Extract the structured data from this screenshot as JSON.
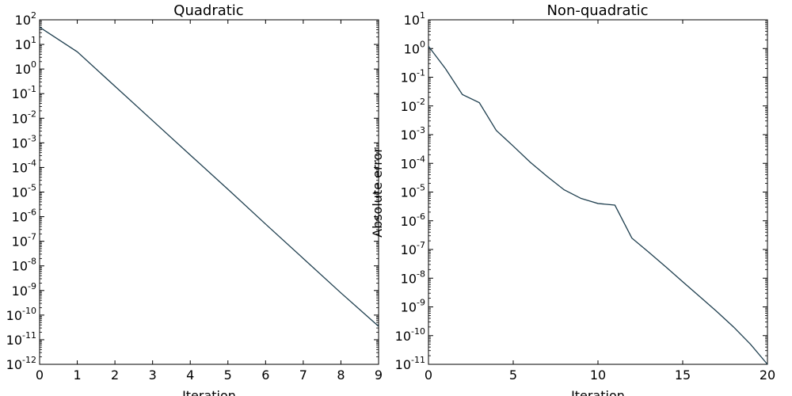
{
  "colors": {
    "series": "#1f3f4f",
    "axes": "#000000",
    "background": "#ffffff"
  },
  "chart_data": [
    {
      "type": "line",
      "title": "Quadratic",
      "xlabel": "Iteration",
      "ylabel": "",
      "yscale": "log",
      "grid": false,
      "xlim": [
        0,
        9
      ],
      "ylim": [
        1e-12,
        100
      ],
      "xticks": [
        0,
        1,
        2,
        3,
        4,
        5,
        6,
        7,
        8,
        9
      ],
      "yticks": [
        {
          "base": "10",
          "exp": "-12",
          "value": 1e-12
        },
        {
          "base": "10",
          "exp": "-11",
          "value": 1e-11
        },
        {
          "base": "10",
          "exp": "-10",
          "value": 1e-10
        },
        {
          "base": "10",
          "exp": "-9",
          "value": 1e-09
        },
        {
          "base": "10",
          "exp": "-8",
          "value": 1e-08
        },
        {
          "base": "10",
          "exp": "-7",
          "value": 1e-07
        },
        {
          "base": "10",
          "exp": "-6",
          "value": 1e-06
        },
        {
          "base": "10",
          "exp": "-5",
          "value": 1e-05
        },
        {
          "base": "10",
          "exp": "-4",
          "value": 0.0001
        },
        {
          "base": "10",
          "exp": "-3",
          "value": 0.001
        },
        {
          "base": "10",
          "exp": "-2",
          "value": 0.01
        },
        {
          "base": "10",
          "exp": "-1",
          "value": 0.1
        },
        {
          "base": "10",
          "exp": "0",
          "value": 1
        },
        {
          "base": "10",
          "exp": "1",
          "value": 10
        },
        {
          "base": "10",
          "exp": "2",
          "value": 100
        }
      ],
      "series": [
        {
          "x": [
            0,
            1,
            2,
            3,
            4,
            5,
            6,
            7,
            8,
            9
          ],
          "y": [
            50,
            5,
            0.2,
            0.008,
            0.00032,
            1.3e-05,
            5e-07,
            2e-08,
            8e-10,
            3.5e-11
          ]
        }
      ]
    },
    {
      "type": "line",
      "title": "Non-quadratic",
      "xlabel": "Iteration",
      "ylabel": "Absolute error",
      "yscale": "log",
      "grid": false,
      "xlim": [
        0,
        20
      ],
      "ylim": [
        1e-11,
        10
      ],
      "xticks": [
        0,
        5,
        10,
        15,
        20
      ],
      "yticks": [
        {
          "base": "10",
          "exp": "-11",
          "value": 1e-11
        },
        {
          "base": "10",
          "exp": "-10",
          "value": 1e-10
        },
        {
          "base": "10",
          "exp": "-9",
          "value": 1e-09
        },
        {
          "base": "10",
          "exp": "-8",
          "value": 1e-08
        },
        {
          "base": "10",
          "exp": "-7",
          "value": 1e-07
        },
        {
          "base": "10",
          "exp": "-6",
          "value": 1e-06
        },
        {
          "base": "10",
          "exp": "-5",
          "value": 1e-05
        },
        {
          "base": "10",
          "exp": "-4",
          "value": 0.0001
        },
        {
          "base": "10",
          "exp": "-3",
          "value": 0.001
        },
        {
          "base": "10",
          "exp": "-2",
          "value": 0.01
        },
        {
          "base": "10",
          "exp": "-1",
          "value": 0.1
        },
        {
          "base": "10",
          "exp": "0",
          "value": 1
        },
        {
          "base": "10",
          "exp": "1",
          "value": 10
        }
      ],
      "series": [
        {
          "x": [
            0,
            1,
            2,
            3,
            4,
            5,
            6,
            7,
            8,
            9,
            10,
            11,
            12,
            13,
            14,
            15,
            16,
            17,
            18,
            19,
            20
          ],
          "y": [
            1.2,
            0.2,
            0.025,
            0.013,
            0.0014,
            0.0004,
            0.00011,
            3.5e-05,
            1.2e-05,
            6e-06,
            4e-06,
            3.5e-06,
            2.5e-07,
            8e-08,
            2.5e-08,
            7.5e-09,
            2.3e-09,
            7e-10,
            2e-10,
            5e-11,
            1e-11
          ]
        }
      ]
    }
  ]
}
